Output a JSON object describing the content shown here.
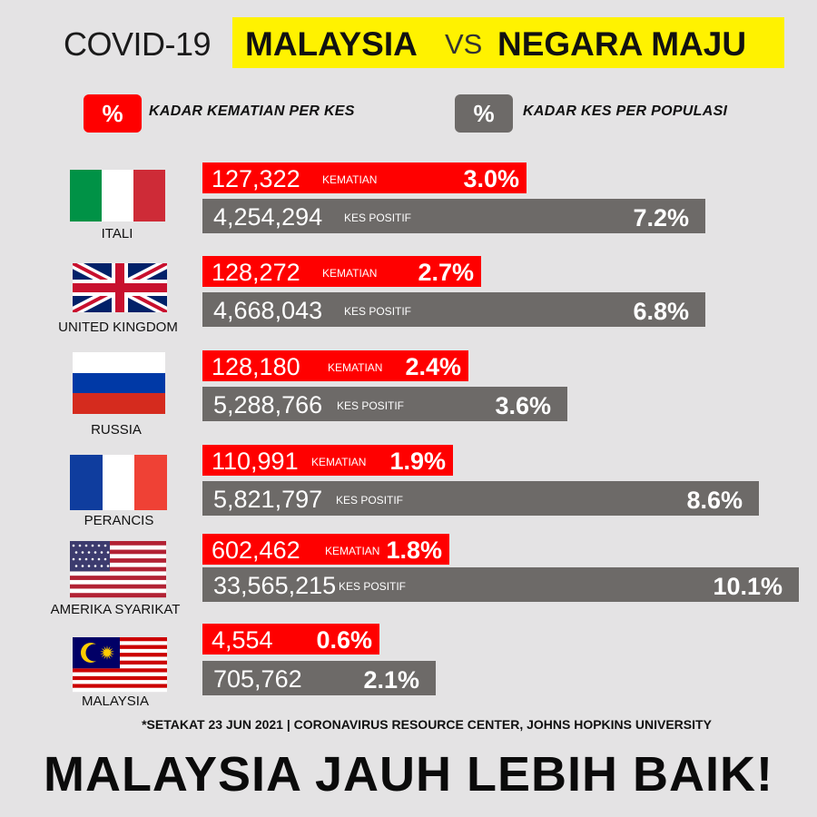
{
  "header": {
    "prefix": "COVID-19",
    "highlight_left": "MALAYSIA",
    "vs": "VS",
    "highlight_right": "NEGARA MAJU"
  },
  "legend": {
    "red_symbol": "%",
    "red_label": "KADAR KEMATIAN PER KES",
    "gray_symbol": "%",
    "gray_label": "KADAR KES PER POPULASI"
  },
  "colors": {
    "red": "#ff0000",
    "gray": "#6d6a68",
    "highlight": "#fff200",
    "background": "#e4e3e4"
  },
  "chart_data": {
    "type": "bar",
    "categories": [
      "ITALI",
      "UNITED KINGDOM",
      "RUSSIA",
      "PERANCIS",
      "AMERIKA SYARIKAT",
      "MALAYSIA"
    ],
    "series": [
      {
        "name": "KADAR KEMATIAN PER KES",
        "counts": [
          "127,322",
          "128,272",
          "128,180",
          "110,991",
          "602,462",
          "4,554"
        ],
        "count_labels": [
          "KEMATIAN",
          "KEMATIAN",
          "KEMATIAN",
          "KEMATIAN",
          "KEMATIAN",
          ""
        ],
        "values": [
          3.0,
          2.7,
          2.4,
          1.9,
          1.8,
          0.6
        ],
        "value_labels": [
          "3.0%",
          "2.7%",
          "2.4%",
          "1.9%",
          "1.8%",
          "0.6%"
        ]
      },
      {
        "name": "KADAR KES PER POPULASI",
        "counts": [
          "4,254,294",
          "4,668,043",
          "5,288,766",
          "5,821,797",
          "33,565,215",
          "705,762"
        ],
        "count_labels": [
          "KES POSITIF",
          "KES POSITIF",
          "KES POSITIF",
          "KES POSITIF",
          "KES POSITIF",
          ""
        ],
        "values": [
          7.2,
          6.8,
          3.6,
          8.6,
          10.1,
          2.1
        ],
        "value_labels": [
          "7.2%",
          "6.8%",
          "3.6%",
          "8.6%",
          "10.1%",
          "2.1%"
        ]
      }
    ],
    "flags": [
      "italy-flag",
      "uk-flag",
      "russia-flag",
      "france-flag",
      "usa-flag",
      "malaysia-flag"
    ]
  },
  "footnote": "*SETAKAT 23 JUN 2021 | CORONAVIRUS RESOURCE CENTER,  JOHNS HOPKINS UNIVERSITY",
  "tagline": "MALAYSIA JAUH LEBIH BAIK!"
}
